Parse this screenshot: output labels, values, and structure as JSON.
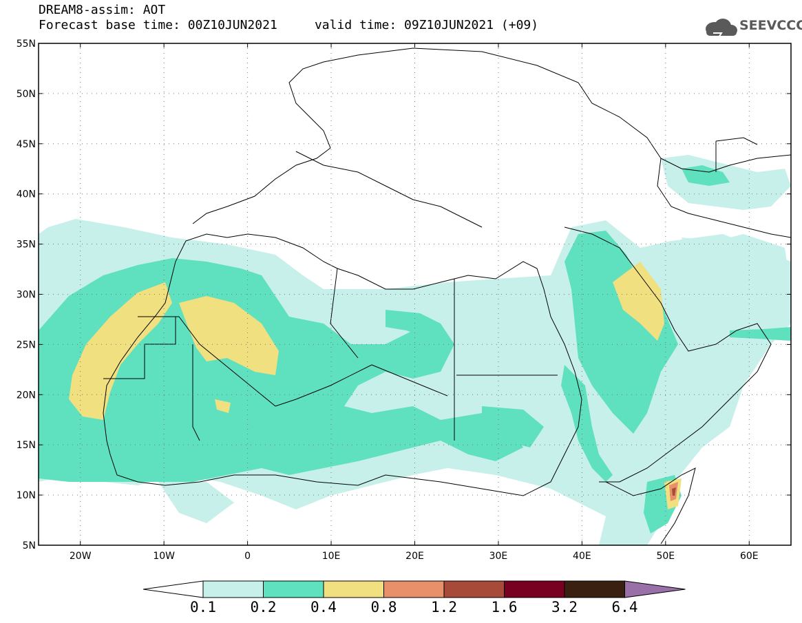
{
  "title": {
    "line1": "DREAM8-assim: AOT",
    "line2": "Forecast base time: 00Z10JUN2021     valid time: 09Z10JUN2021 (+09)"
  },
  "logo": {
    "text": "SEEVCCC",
    "icon": "cloud-icon"
  },
  "map": {
    "lon_range": [
      -25,
      65
    ],
    "lat_range": [
      5,
      55
    ],
    "grid": "dotted",
    "lat_ticks": [
      {
        "value": 55,
        "label": "55N"
      },
      {
        "value": 50,
        "label": "50N"
      },
      {
        "value": 45,
        "label": "45N"
      },
      {
        "value": 40,
        "label": "40N"
      },
      {
        "value": 35,
        "label": "35N"
      },
      {
        "value": 30,
        "label": "30N"
      },
      {
        "value": 25,
        "label": "25N"
      },
      {
        "value": 20,
        "label": "20N"
      },
      {
        "value": 15,
        "label": "15N"
      },
      {
        "value": 10,
        "label": "10N"
      },
      {
        "value": 5,
        "label": "5N"
      }
    ],
    "lon_ticks": [
      {
        "value": -20,
        "label": "20W"
      },
      {
        "value": -10,
        "label": "10W"
      },
      {
        "value": 0,
        "label": "0"
      },
      {
        "value": 10,
        "label": "10E"
      },
      {
        "value": 20,
        "label": "20E"
      },
      {
        "value": 30,
        "label": "30E"
      },
      {
        "value": 40,
        "label": "40E"
      },
      {
        "value": 50,
        "label": "50E"
      },
      {
        "value": 60,
        "label": "60E"
      }
    ]
  },
  "colorbar": {
    "labels": [
      "0.1",
      "0.2",
      "0.4",
      "0.8",
      "1.2",
      "1.6",
      "3.2",
      "6.4"
    ],
    "under_color": "#ffffff",
    "colors": [
      "#c8f0ea",
      "#5fe0bf",
      "#f0e080",
      "#e8906a",
      "#a84a3a",
      "#780020",
      "#3a2010"
    ],
    "over_color": "#9a70a8"
  },
  "field_colors": {
    "c01": "#c8f0ea",
    "c02": "#5fe0bf",
    "c04": "#f0e080",
    "c08": "#e8906a",
    "c12": "#a84a3a"
  }
}
